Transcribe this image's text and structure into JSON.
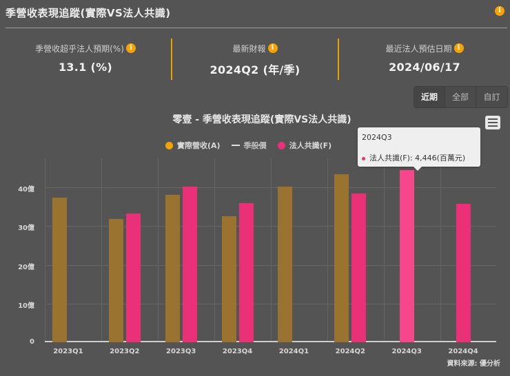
{
  "header": {
    "title": "季營收表現追蹤(實際VS法人共識)",
    "info_icon": "info-icon"
  },
  "stats": [
    {
      "label": "季營收超乎法人預期(%)",
      "value": "13.1 (%)",
      "icon": "info-icon"
    },
    {
      "label": "最新財報",
      "value": "2024Q2 (年/季)",
      "icon": "info-icon"
    },
    {
      "label": "最近法人預估日期",
      "value": "2024/06/17",
      "icon": "info-icon"
    }
  ],
  "range_buttons": [
    {
      "label": "近期",
      "active": true
    },
    {
      "label": "全部",
      "active": false
    },
    {
      "label": "自訂",
      "active": false
    }
  ],
  "menu_icon": "hamburger-menu-icon",
  "colors": {
    "actual": "#9a7330",
    "forecast": "#ea3178",
    "forecast_hover": "#f5478a",
    "accent": "#f5a300",
    "background": "#545454"
  },
  "legend": [
    {
      "label": "實際營收(A)",
      "marker": "dot",
      "color": "#f5a300",
      "hidden": false
    },
    {
      "label": "季股價",
      "marker": "line",
      "color": "#e0e0e0",
      "hidden": true
    },
    {
      "label": "法人共識(F)",
      "marker": "dot",
      "color": "#ea3178",
      "hidden": false
    }
  ],
  "tooltip": {
    "title": "2024Q3",
    "row": "法人共識(F): 4,446(百萬元)"
  },
  "source": "資料來源: 優分析",
  "chart_data": {
    "type": "bar",
    "title": "零壹 - 季營收表現追蹤(實際VS法人共識)",
    "xlabel": "",
    "ylabel": "",
    "categories": [
      "2023Q1",
      "2023Q2",
      "2023Q3",
      "2023Q4",
      "2024Q1",
      "2024Q2",
      "2024Q3",
      "2024Q4"
    ],
    "series": [
      {
        "name": "實際營收(A)",
        "unit": "億",
        "values": [
          37.3,
          31.8,
          38.0,
          32.5,
          40.2,
          43.4,
          null,
          null
        ]
      },
      {
        "name": "法人共識(F)",
        "unit": "億",
        "values": [
          null,
          33.2,
          40.2,
          36.0,
          null,
          38.4,
          44.46,
          35.7
        ]
      },
      {
        "name": "季股價",
        "hidden": true,
        "values": []
      }
    ],
    "yticks": [
      "0",
      "10億",
      "20億",
      "30億",
      "40億"
    ],
    "ylim": [
      0,
      47.5
    ],
    "grid": true,
    "legend_position": "top"
  }
}
